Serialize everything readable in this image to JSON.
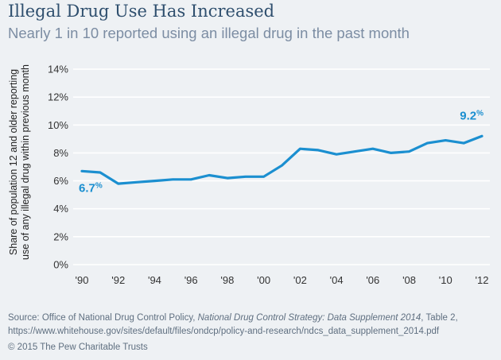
{
  "title": "Illegal Drug Use Has Increased",
  "subtitle": "Nearly 1 in 10 reported using an illegal drug in the past month",
  "chart_data": {
    "type": "line",
    "title": "Illegal Drug Use Has Increased",
    "subtitle": "Nearly 1 in 10 reported using an illegal drug in the past month",
    "ylabel": "Share of population 12 and older reporting use of any illegal drug within previous month",
    "ylabel_lines": [
      "Share of population 12 and older reporting",
      "use of any illegal drug within previous month"
    ],
    "xlabel": "",
    "x": [
      1990,
      1991,
      1992,
      1993,
      1994,
      1995,
      1996,
      1997,
      1998,
      1999,
      2000,
      2001,
      2002,
      2003,
      2004,
      2005,
      2006,
      2007,
      2008,
      2009,
      2010,
      2011,
      2012
    ],
    "series": [
      {
        "values": [
          6.7,
          6.6,
          5.8,
          5.9,
          6.0,
          6.1,
          6.1,
          6.4,
          6.2,
          6.3,
          6.3,
          7.1,
          8.3,
          8.2,
          7.9,
          8.1,
          8.3,
          8.0,
          8.1,
          8.7,
          8.9,
          8.7,
          9.2
        ]
      }
    ],
    "xticks": [
      1990,
      1992,
      1994,
      1996,
      1998,
      2000,
      2002,
      2004,
      2006,
      2008,
      2010,
      2012
    ],
    "xtick_labels": [
      "'90",
      "'92",
      "'94",
      "'96",
      "'98",
      "'00",
      "'02",
      "'04",
      "'06",
      "'08",
      "'10",
      "'12"
    ],
    "xlim": [
      1990,
      2012
    ],
    "yticks": [
      0,
      2,
      4,
      6,
      8,
      10,
      12,
      14
    ],
    "ytick_labels": [
      "0%",
      "2%",
      "4%",
      "6%",
      "8%",
      "10%",
      "12%",
      "14%"
    ],
    "ylim": [
      0,
      14
    ],
    "grid": true,
    "annotations": [
      {
        "x": 1990,
        "y": 6.7,
        "value": "6.7",
        "unit": "%"
      },
      {
        "x": 2012,
        "y": 9.2,
        "value": "9.2",
        "unit": "%"
      }
    ],
    "line_color": "#1b8fd0",
    "grid_color": "#ffffff"
  },
  "source": {
    "prefix": "Source: Office of National Drug Control Policy, ",
    "italic": "National Drug Control Strategy: Data Supplement 2014",
    "suffix": ", Table 2, https://www.whitehouse.gov/sites/default/files/ondcp/policy-and-research/ndcs_data_supplement_2014.pdf"
  },
  "copyright": "© 2015 The Pew Charitable Trusts"
}
